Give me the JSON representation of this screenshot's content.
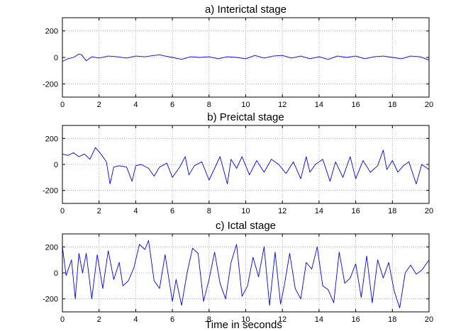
{
  "chart_data": [
    {
      "type": "line",
      "title": "a)  Interictal stage",
      "xlim": [
        0,
        20
      ],
      "ylim": [
        -300,
        300
      ],
      "xticks": [
        "0",
        "2",
        "4",
        "6",
        "8",
        "10",
        "12",
        "14",
        "16",
        "18",
        "20"
      ],
      "yticks": [
        "200",
        "0",
        "-200"
      ],
      "grid": true,
      "series": [
        {
          "color": "#0000ff",
          "x": [
            0,
            0.3,
            0.6,
            0.9,
            1.05,
            1.3,
            1.6,
            2,
            2.5,
            3,
            3.5,
            4,
            4.5,
            5,
            5.3,
            5.6,
            6,
            6.5,
            7,
            7.5,
            8,
            8.5,
            9,
            9.5,
            10,
            10.5,
            11,
            11.5,
            12,
            12.5,
            13,
            13.5,
            14,
            14.5,
            15,
            15.5,
            16,
            16.5,
            17,
            17.5,
            18,
            18.5,
            19,
            19.5,
            20
          ],
          "y": [
            -30,
            -10,
            0,
            25,
            20,
            -25,
            5,
            -5,
            10,
            5,
            -5,
            10,
            5,
            15,
            20,
            10,
            0,
            -15,
            5,
            0,
            5,
            -10,
            5,
            0,
            -10,
            15,
            -5,
            10,
            15,
            -5,
            10,
            -10,
            5,
            -15,
            10,
            0,
            10,
            -10,
            5,
            10,
            0,
            -10,
            10,
            5,
            -20
          ]
        }
      ]
    },
    {
      "type": "line",
      "title": "b)  Preictal stage",
      "xlim": [
        0,
        20
      ],
      "ylim": [
        -300,
        300
      ],
      "xticks": [
        "0",
        "2",
        "4",
        "6",
        "8",
        "10",
        "12",
        "14",
        "16",
        "18",
        "20"
      ],
      "yticks": [
        "200",
        "0",
        "-200"
      ],
      "grid": true,
      "series": [
        {
          "color": "#0000ff",
          "x": [
            0,
            0.3,
            0.6,
            0.9,
            1.2,
            1.5,
            1.8,
            2.1,
            2.4,
            2.6,
            2.8,
            3.1,
            3.5,
            3.8,
            4,
            4.3,
            4.7,
            5,
            5.3,
            5.7,
            6,
            6.4,
            6.7,
            6.9,
            7.2,
            7.6,
            8,
            8.3,
            8.6,
            9,
            9.2,
            9.5,
            9.8,
            10.2,
            10.6,
            11,
            11.4,
            11.8,
            12.2,
            12.6,
            13,
            13.3,
            13.5,
            13.8,
            14.2,
            14.6,
            14.9,
            15.3,
            15.7,
            16,
            16.4,
            16.8,
            17.2,
            17.5,
            17.7,
            18,
            18.3,
            18.6,
            18.9,
            19.3,
            19.6,
            20
          ],
          "y": [
            80,
            70,
            90,
            60,
            80,
            40,
            130,
            80,
            20,
            -150,
            -20,
            -10,
            -20,
            -130,
            -10,
            0,
            -30,
            -90,
            -20,
            10,
            -100,
            -20,
            60,
            -80,
            -10,
            20,
            -120,
            -30,
            60,
            -150,
            40,
            -30,
            60,
            -80,
            30,
            -60,
            40,
            0,
            -70,
            20,
            -110,
            60,
            -60,
            0,
            40,
            -130,
            20,
            -100,
            60,
            -110,
            30,
            -60,
            -10,
            110,
            -40,
            30,
            -60,
            -10,
            20,
            -150,
            0,
            -40
          ]
        }
      ]
    },
    {
      "type": "line",
      "title": "c)  Ictal stage",
      "xlim": [
        0,
        20
      ],
      "ylim": [
        -300,
        300
      ],
      "xticks": [
        "0",
        "2",
        "4",
        "6",
        "8",
        "10",
        "12",
        "14",
        "16",
        "18",
        "20"
      ],
      "yticks": [
        "200",
        "0",
        "-200"
      ],
      "grid": true,
      "series": [
        {
          "color": "#0000ff",
          "x": [
            0,
            0.2,
            0.5,
            0.7,
            0.9,
            1.1,
            1.3,
            1.6,
            1.9,
            2.2,
            2.5,
            2.8,
            3.1,
            3.3,
            3.6,
            3.9,
            4.2,
            4.5,
            4.7,
            5,
            5.3,
            5.6,
            6,
            6.2,
            6.5,
            6.8,
            7.1,
            7.4,
            7.7,
            8,
            8.3,
            8.6,
            8.9,
            9.2,
            9.5,
            9.8,
            10.1,
            10.4,
            10.7,
            11,
            11.3,
            11.6,
            11.9,
            12.1,
            12.4,
            12.7,
            13,
            13.3,
            13.6,
            13.9,
            14.2,
            14.5,
            14.8,
            15.1,
            15.4,
            15.7,
            16,
            16.3,
            16.6,
            16.9,
            17.2,
            17.5,
            17.8,
            18.1,
            18.4,
            18.7,
            19,
            19.3,
            19.6,
            20
          ],
          "y": [
            200,
            -20,
            100,
            -200,
            150,
            0,
            150,
            -200,
            140,
            -120,
            170,
            -50,
            80,
            -100,
            -60,
            40,
            220,
            180,
            250,
            -60,
            -120,
            140,
            -220,
            -50,
            -250,
            0,
            190,
            150,
            -220,
            -50,
            160,
            -80,
            -200,
            80,
            220,
            -180,
            -100,
            120,
            -30,
            200,
            -250,
            160,
            -240,
            -100,
            150,
            -120,
            -200,
            80,
            30,
            200,
            -100,
            -130,
            -230,
            160,
            -80,
            -40,
            70,
            -190,
            130,
            -230,
            100,
            -40,
            80,
            -140,
            -270,
            0,
            60,
            -10,
            20,
            100
          ]
        }
      ]
    }
  ],
  "figure": {
    "xlabel": "Time in seconds"
  }
}
